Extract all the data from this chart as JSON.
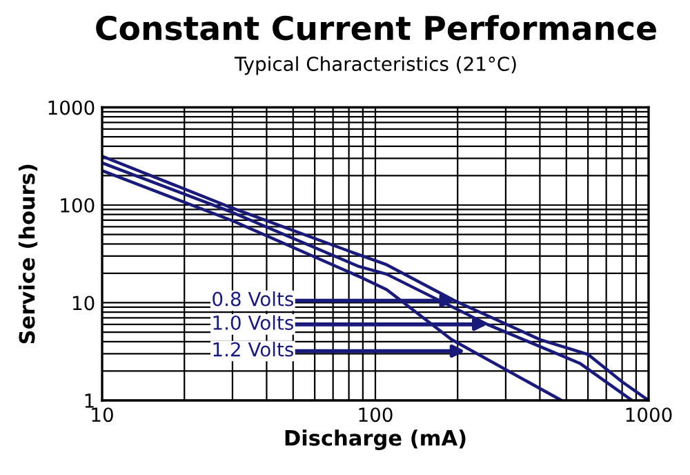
{
  "chart_data": {
    "type": "line",
    "title": "Constant Current Performance",
    "subtitle": "Typical Characteristics (21°C)",
    "xlabel": "Discharge (mA)",
    "ylabel": "Service (hours)",
    "log": "xy",
    "grid": true,
    "color": "#1a1a7a",
    "xlim": [
      10,
      1000
    ],
    "ylim": [
      1,
      1000
    ],
    "xticks": [
      10,
      100,
      1000
    ],
    "yticks": [
      1,
      10,
      100,
      1000
    ],
    "series": [
      {
        "x": [
          10,
          30,
          87,
          110,
          195,
          400,
          600,
          800,
          1000
        ],
        "values": [
          316,
          93,
          31,
          24.5,
          10.5,
          4.2,
          2.96,
          1.55,
          1
        ]
      },
      {
        "x": [
          10,
          30,
          87,
          110,
          257,
          560,
          870
        ],
        "values": [
          270,
          84,
          23.5,
          19.6,
          6.0,
          2.4,
          1
        ]
      },
      {
        "x": [
          10,
          30,
          87,
          110,
          190,
          480
        ],
        "values": [
          225,
          69,
          18.6,
          13.6,
          4.2,
          1
        ]
      }
    ],
    "annotations": [
      {
        "text": "0.8 Volts",
        "x": 195,
        "y": 10.5
      },
      {
        "text": "1.0 Volts",
        "x": 257,
        "y": 6.0
      },
      {
        "text": "1.2 Volts",
        "x": 213,
        "y": 3.2
      }
    ]
  }
}
